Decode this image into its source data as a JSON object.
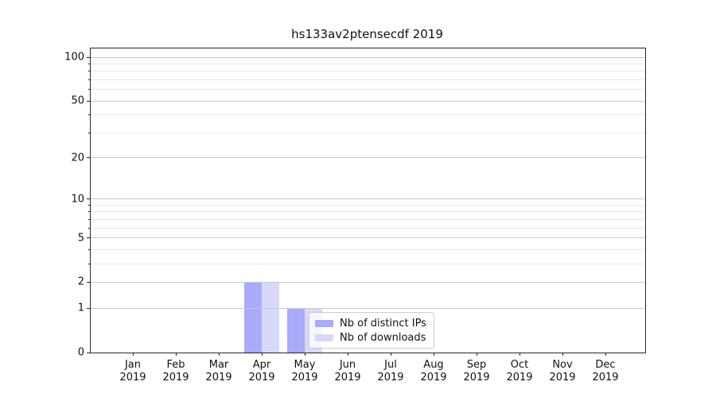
{
  "title": "hs133av2ptensecdf 2019",
  "chart_data": {
    "type": "bar",
    "title": "hs133av2ptensecdf 2019",
    "x_categories": [
      {
        "month": "Jan",
        "year": "2019"
      },
      {
        "month": "Feb",
        "year": "2019"
      },
      {
        "month": "Mar",
        "year": "2019"
      },
      {
        "month": "Apr",
        "year": "2019"
      },
      {
        "month": "May",
        "year": "2019"
      },
      {
        "month": "Jun",
        "year": "2019"
      },
      {
        "month": "Jul",
        "year": "2019"
      },
      {
        "month": "Aug",
        "year": "2019"
      },
      {
        "month": "Sep",
        "year": "2019"
      },
      {
        "month": "Oct",
        "year": "2019"
      },
      {
        "month": "Nov",
        "year": "2019"
      },
      {
        "month": "Dec",
        "year": "2019"
      }
    ],
    "series": [
      {
        "name": "Nb of distinct IPs",
        "color": "#aaaafa",
        "values": [
          0,
          0,
          0,
          2,
          1,
          0,
          0,
          0,
          0,
          0,
          0,
          0
        ]
      },
      {
        "name": "Nb of downloads",
        "color": "#d8d8fa",
        "values": [
          0,
          0,
          0,
          2,
          1,
          0,
          0,
          0,
          0,
          0,
          0,
          0
        ]
      }
    ],
    "y_scale": "log1p",
    "ylim": [
      0,
      115
    ],
    "y_major_ticks": [
      0,
      1,
      2,
      5,
      10,
      20,
      50,
      100
    ],
    "y_minor_gridlines": [
      3,
      4,
      6,
      7,
      8,
      9,
      30,
      40,
      60,
      70,
      80,
      90
    ],
    "grid": true,
    "legend": {
      "position": "lower-center",
      "entries": [
        "Nb of distinct IPs",
        "Nb of downloads"
      ]
    },
    "colors": {
      "major_grid": "#c9c9c9",
      "minor_grid": "#e9e9e9",
      "spine": "#262626",
      "text": "#111111"
    }
  }
}
